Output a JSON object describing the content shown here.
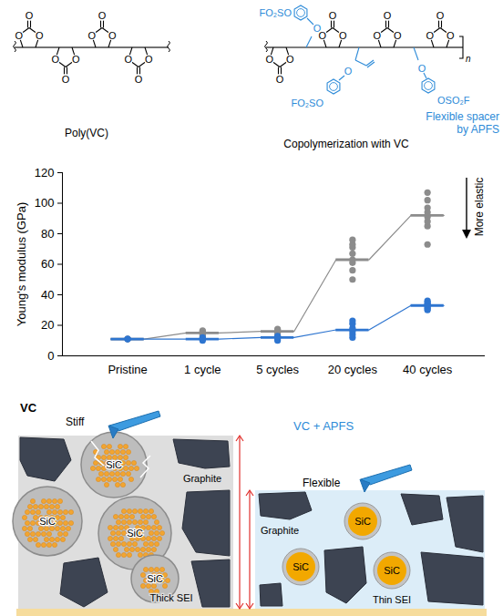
{
  "chart_data": {
    "type": "scatter",
    "categories": [
      "Pristine",
      "1 cycle",
      "5 cycles",
      "20 cycles",
      "40 cycles"
    ],
    "y_label": "Young's modulus (GPa)",
    "ylim": [
      0,
      120
    ],
    "yticks": [
      0,
      20,
      40,
      60,
      80,
      100,
      120
    ],
    "grid": false,
    "annotations": [
      "More elastic"
    ],
    "series": [
      {
        "color": "#8c8c8c",
        "values": [
          11,
          15,
          16,
          63,
          92
        ],
        "points": [
          [
            11,
            11
          ],
          [
            13,
            14,
            15,
            16,
            16.5
          ],
          [
            13,
            15,
            16,
            17,
            17.5
          ],
          [
            50,
            56,
            61,
            63,
            67,
            71,
            73,
            76
          ],
          [
            73,
            85,
            88,
            91,
            94,
            97,
            102,
            107
          ]
        ]
      },
      {
        "color": "#2e75d0",
        "values": [
          11,
          11,
          12,
          17,
          33
        ],
        "points": [
          [
            11,
            11
          ],
          [
            10,
            11,
            11,
            12
          ],
          [
            10,
            11,
            12,
            13
          ],
          [
            12,
            14,
            16,
            18,
            21,
            23
          ],
          [
            30,
            31,
            32,
            33,
            34,
            35,
            36
          ]
        ]
      }
    ]
  },
  "structures": [
    {
      "label": "Poly(VC)",
      "atom": "O"
    },
    {
      "label": "Copolymerization with VC",
      "atom": "O",
      "end_groups": [
        "FO₂SO",
        "FO₂SO",
        "OSO₂F"
      ],
      "repeat": "n",
      "annotation": [
        "Flexible spacer",
        "by APFS"
      ]
    }
  ],
  "schematic": {
    "panels": [
      {
        "title": "VC",
        "tip_label": "Stiff",
        "graphite_label": "Graphite",
        "sei_label": "Thick SEI",
        "particle_labels": [
          "SiC",
          "SiC",
          "SiC",
          "SiC"
        ]
      },
      {
        "title": "VC + APFS",
        "tip_label": "Flexible",
        "graphite_label": "Graphite",
        "sei_label": "Thin SEI",
        "particle_labels": [
          "SiC",
          "SiC",
          "SiC"
        ]
      }
    ]
  }
}
